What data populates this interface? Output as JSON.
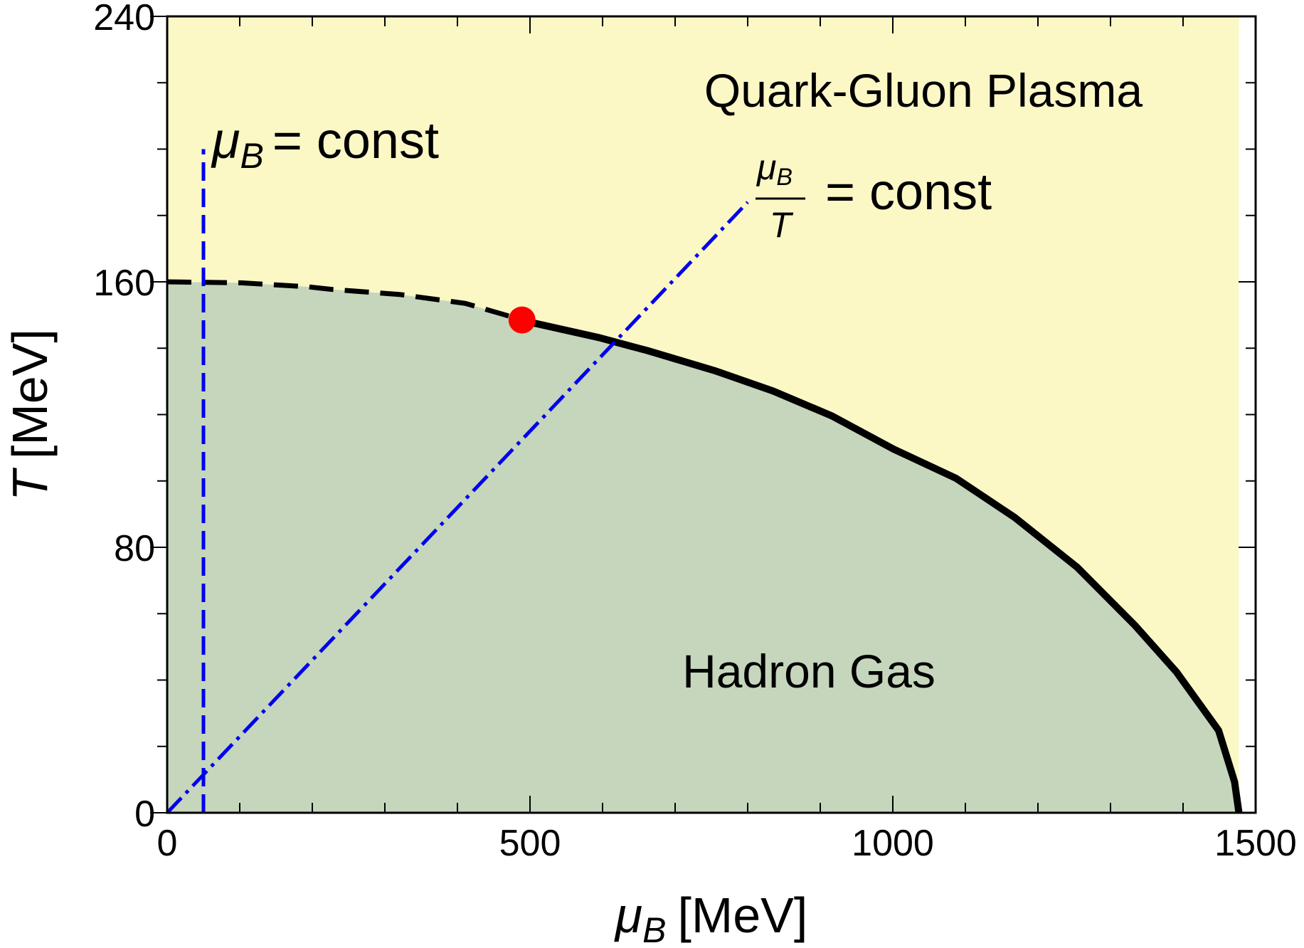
{
  "chart_data": {
    "type": "line",
    "x_label": {
      "symbol": "μ",
      "subscript": "B",
      "unit": "[MeV]"
    },
    "y_label": {
      "symbol": "T",
      "unit": "[MeV]"
    },
    "xlim": [
      0,
      1500
    ],
    "ylim": [
      0,
      240
    ],
    "xticks": [
      0,
      500,
      1000,
      1500
    ],
    "yticks": [
      0,
      80,
      160,
      240
    ],
    "xminorticks": [
      100,
      200,
      300,
      400,
      600,
      700,
      800,
      900,
      1100,
      1200,
      1300,
      1400
    ],
    "yminorticks": [
      20,
      40,
      60,
      100,
      120,
      140,
      180,
      200,
      220
    ],
    "region_colors": {
      "above": "#fbf8c6",
      "below": "#c5d6bc"
    },
    "series": [
      {
        "color": "#000000",
        "style": "dashed",
        "x": [
          0,
          102,
          194,
          228,
          320,
          411,
          463,
          489
        ],
        "values": [
          160,
          159.7,
          158.5,
          157.7,
          156.2,
          153.5,
          150.2,
          148.5
        ]
      },
      {
        "color": "#000000",
        "style": "solid",
        "x": [
          489,
          503,
          595,
          663,
          755,
          835,
          916,
          1001,
          1087,
          1168,
          1254,
          1334,
          1391,
          1449,
          1471,
          1477
        ],
        "values": [
          148.5,
          147.7,
          143.2,
          139.2,
          133.2,
          127.1,
          119.6,
          109.6,
          100.8,
          89,
          74,
          56.4,
          42.4,
          24.8,
          9.3,
          0
        ]
      },
      {
        "color": "#0000ee",
        "style": "dashed",
        "x": [
          50,
          50
        ],
        "values": [
          0,
          200
        ]
      },
      {
        "color": "#0000ee",
        "style": "dashdot",
        "x": [
          0,
          800
        ],
        "values": [
          0,
          184
        ]
      }
    ],
    "points": {
      "color": "#ff0000",
      "x": [
        489
      ],
      "values": [
        148.5
      ]
    },
    "annotations": {
      "qgp": "Quark-Gluon Plasma",
      "hadron": "Hadron Gas",
      "muB_const": {
        "symbol": "μ",
        "subscript": "B",
        "text": "= const"
      },
      "ratio_const": {
        "numerator_symbol": "μ",
        "numerator_subscript": "B",
        "denominator": "T",
        "text": "= const"
      }
    }
  }
}
